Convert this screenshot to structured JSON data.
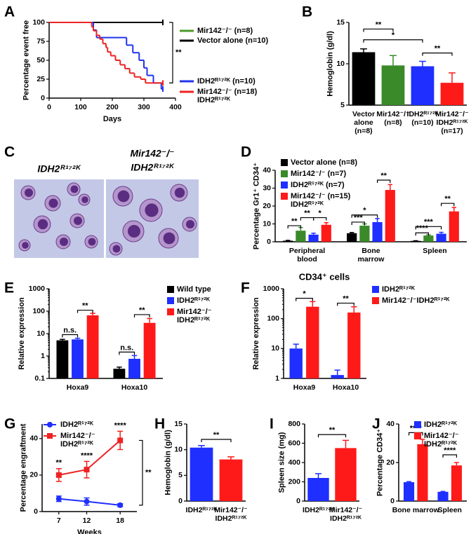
{
  "chart_data": [
    {
      "panel": "A",
      "type": "line",
      "step": true,
      "xlabel": "Days",
      "ylabel": "Percentage event free",
      "xlim": [
        0,
        400
      ],
      "xticks": [
        0,
        100,
        200,
        300,
        400
      ],
      "ylim": [
        0,
        100
      ],
      "yticks": [
        0,
        25,
        50,
        75,
        100
      ],
      "series": [
        {
          "name": [
            "Mir142⁻/⁻  (n=8)"
          ],
          "color": "#4c9a2a",
          "x": [
            0,
            360
          ],
          "values": [
            100,
            100
          ]
        },
        {
          "name": [
            "Vector alone (n=10)"
          ],
          "color": "#000000",
          "x": [
            0,
            360
          ],
          "values": [
            100,
            100
          ]
        },
        {
          "name": [
            "IDH2ᴿ¹⁷²ᴷ (n=10)"
          ],
          "color": "#2233ee",
          "x": [
            0,
            140,
            150,
            245,
            265,
            285,
            300,
            310,
            330,
            355,
            360
          ],
          "values": [
            100,
            90,
            80,
            70,
            60,
            50,
            40,
            30,
            20,
            12,
            12
          ]
        },
        {
          "name": [
            "Mir142⁻/⁻ (n=18)",
            "IDH2ᴿ¹⁷²ᴷ"
          ],
          "color": "#ee2222",
          "x": [
            0,
            135,
            140,
            150,
            160,
            170,
            180,
            185,
            195,
            210,
            225,
            240,
            255,
            270,
            290,
            305,
            360
          ],
          "values": [
            100,
            94,
            89,
            83,
            78,
            72,
            67,
            61,
            56,
            50,
            44,
            39,
            33,
            28,
            25,
            20,
            20
          ]
        }
      ],
      "annotations": [
        "**"
      ]
    },
    {
      "panel": "B",
      "type": "bar",
      "ylabel": "Hemoglobin (g/dl)",
      "categories": [
        [
          "Vector",
          "alone",
          "(n=8)"
        ],
        [
          "Mir142⁻/⁻",
          "(n=8)"
        ],
        [
          "IDH2ᴿ¹⁷²ᴷ",
          "(n=10)"
        ],
        [
          "Mir142⁻/⁻",
          "IDH2ᴿ¹⁷²ᴷ",
          "(n=17)"
        ]
      ],
      "values": [
        11.4,
        9.8,
        9.7,
        7.7
      ],
      "errors": [
        0.4,
        1.2,
        0.6,
        1.2
      ],
      "colors": [
        "#000000",
        "#3a8a2a",
        "#1f2fff",
        "#ff1a1a"
      ],
      "ylim": [
        5,
        15
      ],
      "yticks": [
        5,
        10,
        15
      ],
      "annotations": [
        "**",
        "*",
        "**"
      ]
    },
    {
      "panel": "C",
      "type": "image",
      "labels": [
        [
          "IDH2ᴿ¹⁷²ᴷ"
        ],
        [
          "Mir142⁻/⁻",
          "IDH2ᴿ¹⁷²ᴷ"
        ]
      ]
    },
    {
      "panel": "D",
      "type": "bar",
      "ylabel": "Percentage Gr1⁺ CD34⁺",
      "categories": [
        [
          "Peripheral",
          "blood"
        ],
        [
          "Bone",
          "marrow"
        ],
        [
          "Spleen"
        ]
      ],
      "ylim": [
        0,
        40
      ],
      "yticks": [
        0,
        10,
        20,
        30,
        40
      ],
      "series": [
        {
          "name": [
            "Vector alone (n=8)"
          ],
          "color": "#000000",
          "values": [
            0.6,
            4.8,
            0.5
          ],
          "errors": [
            0.2,
            0.4,
            0.1
          ]
        },
        {
          "name": [
            "Mir142⁻/⁻ (n=7)"
          ],
          "color": "#3a8a2a",
          "values": [
            6.2,
            9,
            3.5
          ],
          "errors": [
            1.8,
            1,
            0.4
          ]
        },
        {
          "name": [
            "IDH2ᴿ¹⁷²ᴷ (n=7)"
          ],
          "color": "#1f2fff",
          "values": [
            4,
            11,
            4.5
          ],
          "errors": [
            0.8,
            2,
            0.8
          ]
        },
        {
          "name": [
            "Mir142⁻/⁻ (n=15)",
            "IDH2ᴿ¹⁷²ᴷ"
          ],
          "color": "#ff1a1a",
          "values": [
            9.5,
            29,
            17
          ],
          "errors": [
            1.2,
            3,
            2.2
          ]
        }
      ],
      "annotations": [
        "**",
        "**",
        "*",
        "***",
        "*",
        "**",
        "****",
        "***",
        "**"
      ]
    },
    {
      "panel": "E",
      "type": "bar",
      "log": true,
      "ylabel": "Relative expression",
      "categories": [
        [
          "Hoxa9"
        ],
        [
          "Hoxa10"
        ]
      ],
      "ylim": [
        0.1,
        1000
      ],
      "yticks": [
        0.1,
        1,
        10,
        100,
        1000
      ],
      "series": [
        {
          "name": [
            "Wild type"
          ],
          "color": "#000000",
          "values": [
            5,
            0.27
          ],
          "errors": [
            0.5,
            0.05
          ]
        },
        {
          "name": [
            "IDH2ᴿ¹⁷²ᴷ"
          ],
          "color": "#1f2fff",
          "values": [
            5.5,
            0.75
          ],
          "errors": [
            0.7,
            0.3
          ]
        },
        {
          "name": [
            "Mir142⁻/⁻",
            "IDH2ᴿ¹⁷²ᴷ"
          ],
          "color": "#ff1a1a",
          "values": [
            65,
            30
          ],
          "errors": [
            15,
            17
          ]
        }
      ],
      "annotations": [
        "n.s.",
        "**",
        "n.s.",
        "**"
      ]
    },
    {
      "panel": "F",
      "type": "bar",
      "log": true,
      "title": "CD34⁺ cells",
      "ylabel": "Relative expression",
      "categories": [
        [
          "Hoxa9"
        ],
        [
          "Hoxa10"
        ]
      ],
      "ylim": [
        1,
        1000
      ],
      "yticks": [
        1,
        10,
        100,
        1000
      ],
      "series": [
        {
          "name": [
            "IDH2ᴿ¹⁷²ᴷ"
          ],
          "color": "#1f2fff",
          "values": [
            10,
            1.3
          ],
          "errors": [
            4,
            0.6
          ]
        },
        {
          "name": [
            "Mir142⁻/⁻IDH2ᴿ¹⁷²ᴷ"
          ],
          "color": "#ff1a1a",
          "values": [
            250,
            160
          ],
          "errors": [
            120,
            90
          ]
        }
      ],
      "annotations": [
        "*",
        "**"
      ]
    },
    {
      "panel": "G",
      "type": "line",
      "xlabel": "Weeks",
      "ylabel": "Percentage engraftment",
      "x": [
        7,
        12,
        18
      ],
      "xlim": [
        4,
        21
      ],
      "xticks": [
        7,
        12,
        18
      ],
      "ylim": [
        0,
        48
      ],
      "yticks": [
        0,
        20,
        40
      ],
      "series": [
        {
          "name": [
            "IDH2ᴿ¹⁷²ᴷ"
          ],
          "color": "#1f2fff",
          "values": [
            7,
            5.5,
            3.5
          ],
          "errors": [
            1.5,
            2,
            0.8
          ]
        },
        {
          "name": [
            "Mir142⁻/⁻",
            "IDH2ᴿ¹⁷²ᴷ"
          ],
          "color": "#ee2222",
          "values": [
            20,
            23,
            39
          ],
          "errors": [
            3.5,
            4.5,
            5
          ]
        }
      ],
      "annotations": [
        "**",
        "****",
        "****",
        "**"
      ]
    },
    {
      "panel": "H",
      "type": "bar",
      "ylabel": "Hemoglobin (g/dl)",
      "categories": [
        [
          "IDH2ᴿ¹⁷²ᴷ"
        ],
        [
          "Mir142⁻/⁻",
          "IDH2ᴿ¹⁷²ᴷ"
        ]
      ],
      "values": [
        10.4,
        8.1
      ],
      "errors": [
        0.4,
        0.5
      ],
      "colors": [
        "#1f2fff",
        "#ff1a1a"
      ],
      "ylim": [
        0,
        15
      ],
      "yticks": [
        0,
        5,
        10,
        15
      ],
      "annotations": [
        "**"
      ]
    },
    {
      "panel": "I",
      "type": "bar",
      "ylabel": "Spleen size (mg)",
      "categories": [
        [
          "IDH2ᴿ¹⁷²ᴷ"
        ],
        [
          "Mir142⁻/⁻",
          "IDH2ᴿ¹⁷²ᴷ"
        ]
      ],
      "values": [
        240,
        550
      ],
      "errors": [
        45,
        80
      ],
      "colors": [
        "#1f2fff",
        "#ff1a1a"
      ],
      "ylim": [
        0,
        800
      ],
      "yticks": [
        0,
        200,
        400,
        600,
        800
      ],
      "annotations": [
        "**"
      ]
    },
    {
      "panel": "J",
      "type": "bar",
      "ylabel": "Percentage CD34⁺",
      "categories": [
        [
          "Bone marrow"
        ],
        [
          "Spleen"
        ]
      ],
      "ylim": [
        0,
        40
      ],
      "yticks": [
        0,
        20,
        40
      ],
      "series": [
        {
          "name": [
            "IDH2ᴿ¹⁷²ᴷ"
          ],
          "color": "#1f2fff",
          "values": [
            9.8,
            4.8
          ],
          "errors": [
            0.3,
            0.2
          ]
        },
        {
          "name": [
            "Mir142⁻/⁻",
            "IDH2ᴿ¹⁷²ᴷ"
          ],
          "color": "#ff1a1a",
          "values": [
            29.5,
            18.5
          ],
          "errors": [
            2.5,
            1.5
          ]
        }
      ],
      "annotations": [
        "****",
        "****"
      ]
    }
  ]
}
